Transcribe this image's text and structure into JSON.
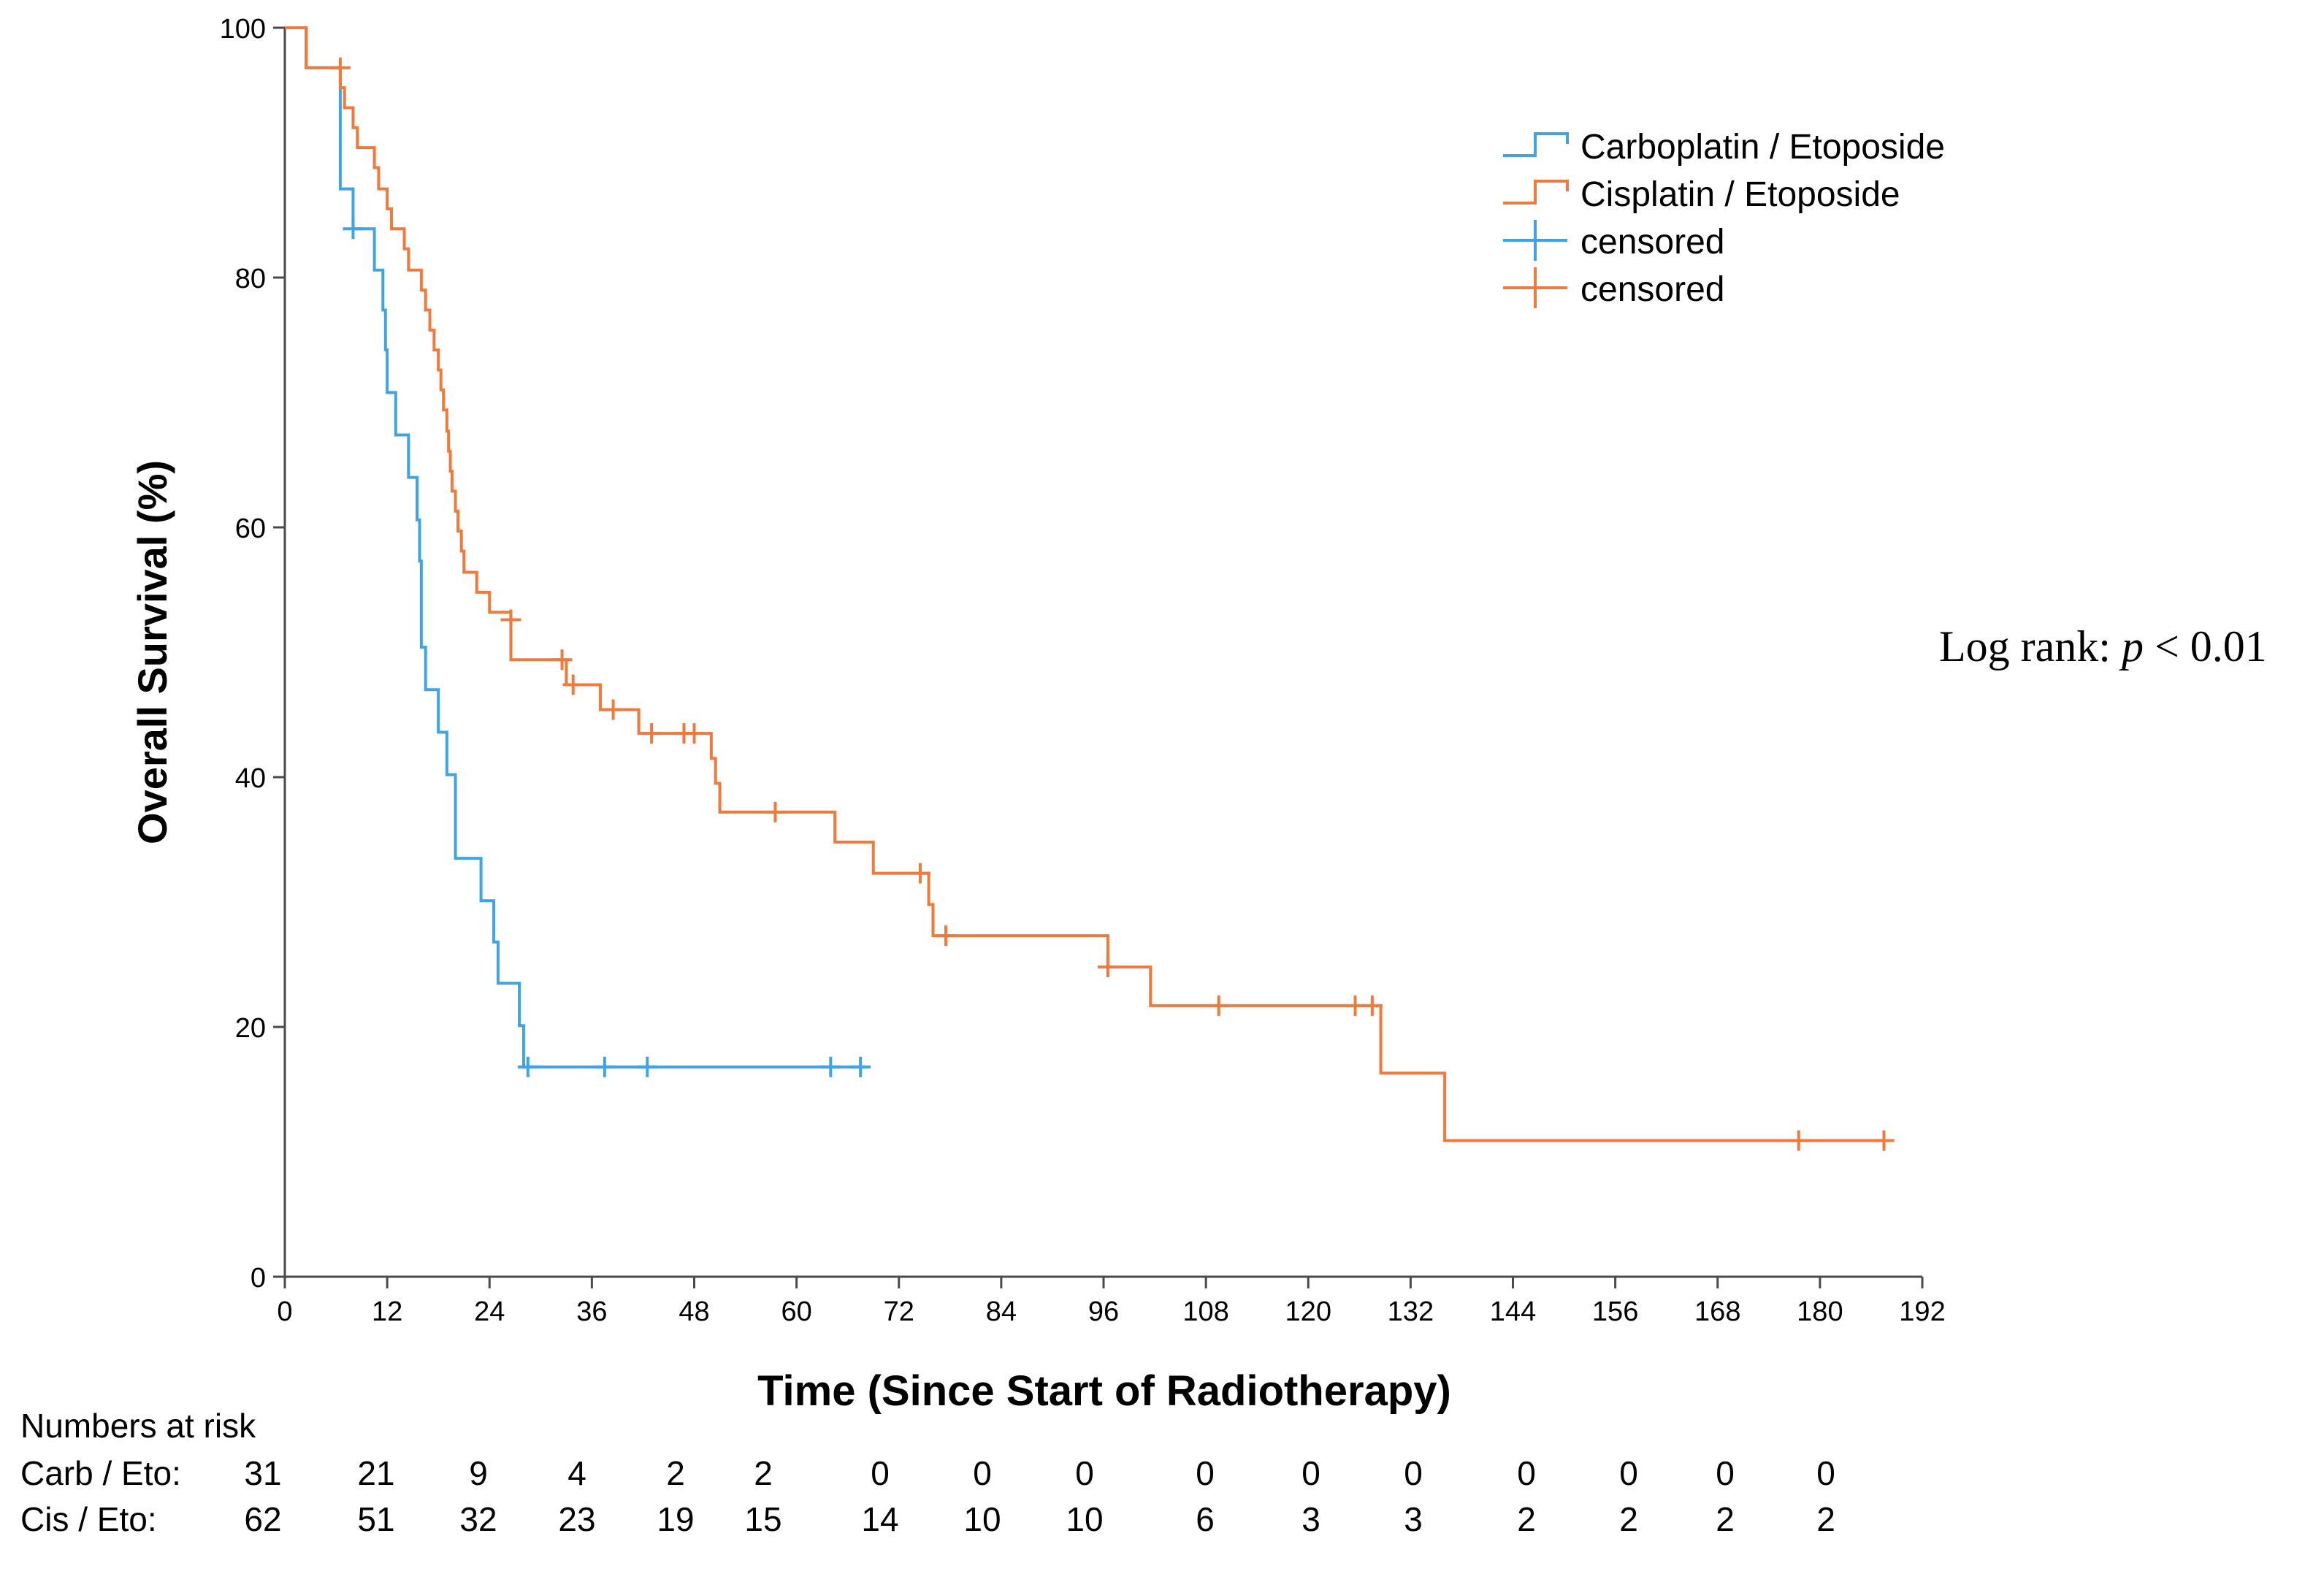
{
  "chart_data": {
    "type": "line",
    "subtype": "kaplan-meier",
    "ylabel": "Overall Survival (%)",
    "xlabel": "Time (Since Start of Radiotherapy)",
    "xlim": [
      0,
      192
    ],
    "ylim": [
      0,
      100
    ],
    "xticks": [
      0,
      12,
      24,
      36,
      48,
      60,
      72,
      84,
      96,
      108,
      120,
      132,
      144,
      156,
      168,
      180,
      192
    ],
    "yticks": [
      0,
      20,
      40,
      60,
      80,
      100
    ],
    "legend_position": "top-right",
    "legend": [
      {
        "label": "Carboplatin / Etoposide",
        "kind": "line",
        "color": "#3FA4E4"
      },
      {
        "label": "Cisplatin / Etoposide",
        "kind": "line",
        "color": "#F07A3C"
      },
      {
        "label": "censored",
        "kind": "censor",
        "color": "#3FA4E4"
      },
      {
        "label": "censored",
        "kind": "censor",
        "color": "#F07A3C"
      }
    ],
    "annotation": {
      "prefix": "Log rank: ",
      "italic": "p",
      "suffix": " < 0.01"
    },
    "series": [
      {
        "name": "Carboplatin / Etoposide",
        "color": "#3FA4E4",
        "steps": [
          [
            0,
            100
          ],
          [
            2.5,
            96.8
          ],
          [
            6.5,
            87.1
          ],
          [
            8,
            83.9
          ],
          [
            10.5,
            80.6
          ],
          [
            11.5,
            77.4
          ],
          [
            11.8,
            74.2
          ],
          [
            12,
            70.8
          ],
          [
            13,
            67.4
          ],
          [
            14.5,
            64.0
          ],
          [
            15.5,
            60.6
          ],
          [
            15.8,
            57.3
          ],
          [
            16,
            50.4
          ],
          [
            16.5,
            47.0
          ],
          [
            18,
            43.6
          ],
          [
            19,
            40.2
          ],
          [
            20,
            33.5
          ],
          [
            23,
            30.1
          ],
          [
            24.5,
            26.8
          ],
          [
            25,
            23.5
          ],
          [
            27.5,
            20.1
          ],
          [
            28,
            16.8
          ],
          [
            68,
            16.8
          ]
        ],
        "censored": [
          [
            8,
            83.9
          ],
          [
            28.5,
            16.8
          ],
          [
            37.5,
            16.8
          ],
          [
            42.5,
            16.8
          ],
          [
            64,
            16.8
          ],
          [
            67.5,
            16.8
          ]
        ]
      },
      {
        "name": "Cisplatin / Etoposide",
        "color": "#F07A3C",
        "steps": [
          [
            0,
            100
          ],
          [
            2.5,
            96.8
          ],
          [
            6.5,
            95.2
          ],
          [
            7,
            93.6
          ],
          [
            8,
            92.0
          ],
          [
            8.5,
            90.4
          ],
          [
            10.5,
            88.8
          ],
          [
            11,
            87.1
          ],
          [
            12,
            85.5
          ],
          [
            12.5,
            83.9
          ],
          [
            14,
            82.3
          ],
          [
            14.5,
            80.6
          ],
          [
            16,
            79.0
          ],
          [
            16.5,
            77.4
          ],
          [
            17,
            75.8
          ],
          [
            17.5,
            74.2
          ],
          [
            18,
            72.6
          ],
          [
            18.3,
            71.0
          ],
          [
            18.6,
            69.4
          ],
          [
            19,
            67.7
          ],
          [
            19.2,
            66.1
          ],
          [
            19.4,
            64.5
          ],
          [
            19.6,
            62.9
          ],
          [
            20,
            61.3
          ],
          [
            20.3,
            59.7
          ],
          [
            20.7,
            58.1
          ],
          [
            21,
            56.4
          ],
          [
            22.5,
            54.8
          ],
          [
            24,
            53.2
          ],
          [
            26.5,
            49.4
          ],
          [
            33,
            47.4
          ],
          [
            37,
            45.4
          ],
          [
            41.5,
            43.5
          ],
          [
            50,
            41.5
          ],
          [
            50.5,
            39.5
          ],
          [
            51,
            37.2
          ],
          [
            64.5,
            34.8
          ],
          [
            69,
            32.3
          ],
          [
            75.5,
            29.8
          ],
          [
            76,
            27.3
          ],
          [
            96.5,
            24.8
          ],
          [
            101.5,
            21.7
          ],
          [
            128.5,
            16.3
          ],
          [
            136,
            10.9
          ],
          [
            187.5,
            10.9
          ]
        ],
        "censored": [
          [
            6.5,
            96.8
          ],
          [
            26.5,
            52.6
          ],
          [
            32.5,
            49.4
          ],
          [
            33.8,
            47.4
          ],
          [
            38.5,
            45.4
          ],
          [
            43,
            43.5
          ],
          [
            46.8,
            43.5
          ],
          [
            48,
            43.5
          ],
          [
            57.5,
            37.2
          ],
          [
            74.5,
            32.3
          ],
          [
            77.5,
            27.3
          ],
          [
            96.5,
            24.8
          ],
          [
            109.5,
            21.7
          ],
          [
            125.5,
            21.7
          ],
          [
            127.5,
            21.7
          ],
          [
            177.5,
            10.9
          ],
          [
            187.5,
            10.9
          ]
        ]
      }
    ],
    "at_risk": {
      "title": "Numbers at risk",
      "rows": [
        {
          "label": "Carb / Eto:",
          "values": [
            "31",
            "21",
            "9",
            "4",
            "2",
            "2",
            "0",
            "0",
            "0",
            "0",
            "0",
            "0",
            "0",
            "0",
            "0",
            "0"
          ]
        },
        {
          "label": "Cis / Eto:",
          "values": [
            "62",
            "51",
            "32",
            "23",
            "19",
            "15",
            "14",
            "10",
            "10",
            "6",
            "3",
            "3",
            "2",
            "2",
            "2",
            "2"
          ]
        }
      ]
    }
  }
}
